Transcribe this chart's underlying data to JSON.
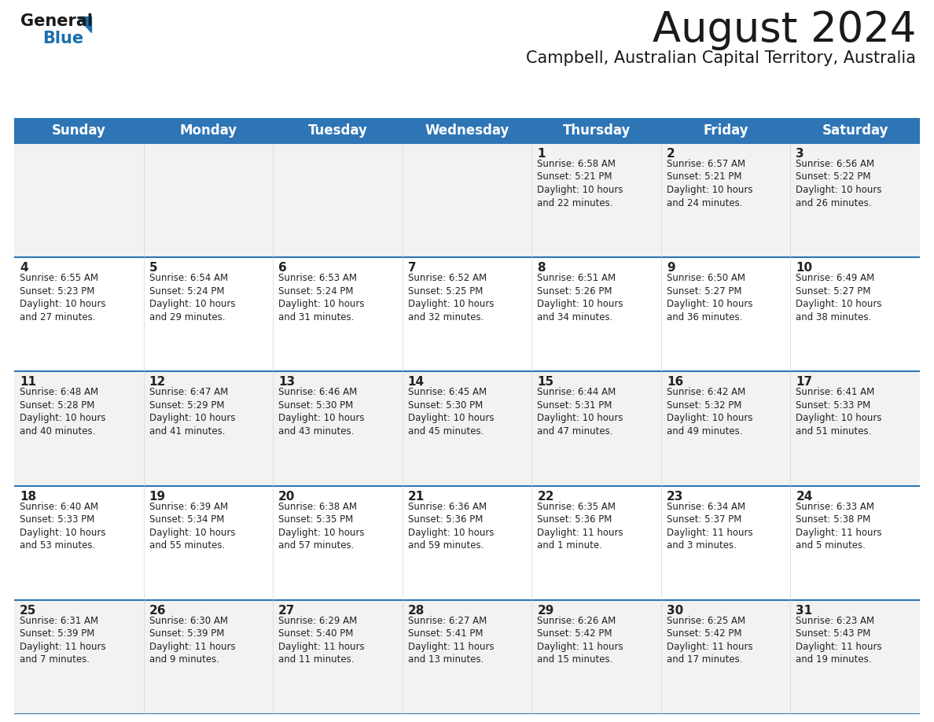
{
  "title": "August 2024",
  "subtitle": "Campbell, Australian Capital Territory, Australia",
  "header_bg": "#2E75B6",
  "header_text_color": "#FFFFFF",
  "row_bg_odd": "#F2F2F2",
  "row_bg_even": "#FFFFFF",
  "border_color": "#2E75B6",
  "day_names": [
    "Sunday",
    "Monday",
    "Tuesday",
    "Wednesday",
    "Thursday",
    "Friday",
    "Saturday"
  ],
  "weeks": [
    [
      {
        "day": "",
        "info": ""
      },
      {
        "day": "",
        "info": ""
      },
      {
        "day": "",
        "info": ""
      },
      {
        "day": "",
        "info": ""
      },
      {
        "day": "1",
        "info": "Sunrise: 6:58 AM\nSunset: 5:21 PM\nDaylight: 10 hours\nand 22 minutes."
      },
      {
        "day": "2",
        "info": "Sunrise: 6:57 AM\nSunset: 5:21 PM\nDaylight: 10 hours\nand 24 minutes."
      },
      {
        "day": "3",
        "info": "Sunrise: 6:56 AM\nSunset: 5:22 PM\nDaylight: 10 hours\nand 26 minutes."
      }
    ],
    [
      {
        "day": "4",
        "info": "Sunrise: 6:55 AM\nSunset: 5:23 PM\nDaylight: 10 hours\nand 27 minutes."
      },
      {
        "day": "5",
        "info": "Sunrise: 6:54 AM\nSunset: 5:24 PM\nDaylight: 10 hours\nand 29 minutes."
      },
      {
        "day": "6",
        "info": "Sunrise: 6:53 AM\nSunset: 5:24 PM\nDaylight: 10 hours\nand 31 minutes."
      },
      {
        "day": "7",
        "info": "Sunrise: 6:52 AM\nSunset: 5:25 PM\nDaylight: 10 hours\nand 32 minutes."
      },
      {
        "day": "8",
        "info": "Sunrise: 6:51 AM\nSunset: 5:26 PM\nDaylight: 10 hours\nand 34 minutes."
      },
      {
        "day": "9",
        "info": "Sunrise: 6:50 AM\nSunset: 5:27 PM\nDaylight: 10 hours\nand 36 minutes."
      },
      {
        "day": "10",
        "info": "Sunrise: 6:49 AM\nSunset: 5:27 PM\nDaylight: 10 hours\nand 38 minutes."
      }
    ],
    [
      {
        "day": "11",
        "info": "Sunrise: 6:48 AM\nSunset: 5:28 PM\nDaylight: 10 hours\nand 40 minutes."
      },
      {
        "day": "12",
        "info": "Sunrise: 6:47 AM\nSunset: 5:29 PM\nDaylight: 10 hours\nand 41 minutes."
      },
      {
        "day": "13",
        "info": "Sunrise: 6:46 AM\nSunset: 5:30 PM\nDaylight: 10 hours\nand 43 minutes."
      },
      {
        "day": "14",
        "info": "Sunrise: 6:45 AM\nSunset: 5:30 PM\nDaylight: 10 hours\nand 45 minutes."
      },
      {
        "day": "15",
        "info": "Sunrise: 6:44 AM\nSunset: 5:31 PM\nDaylight: 10 hours\nand 47 minutes."
      },
      {
        "day": "16",
        "info": "Sunrise: 6:42 AM\nSunset: 5:32 PM\nDaylight: 10 hours\nand 49 minutes."
      },
      {
        "day": "17",
        "info": "Sunrise: 6:41 AM\nSunset: 5:33 PM\nDaylight: 10 hours\nand 51 minutes."
      }
    ],
    [
      {
        "day": "18",
        "info": "Sunrise: 6:40 AM\nSunset: 5:33 PM\nDaylight: 10 hours\nand 53 minutes."
      },
      {
        "day": "19",
        "info": "Sunrise: 6:39 AM\nSunset: 5:34 PM\nDaylight: 10 hours\nand 55 minutes."
      },
      {
        "day": "20",
        "info": "Sunrise: 6:38 AM\nSunset: 5:35 PM\nDaylight: 10 hours\nand 57 minutes."
      },
      {
        "day": "21",
        "info": "Sunrise: 6:36 AM\nSunset: 5:36 PM\nDaylight: 10 hours\nand 59 minutes."
      },
      {
        "day": "22",
        "info": "Sunrise: 6:35 AM\nSunset: 5:36 PM\nDaylight: 11 hours\nand 1 minute."
      },
      {
        "day": "23",
        "info": "Sunrise: 6:34 AM\nSunset: 5:37 PM\nDaylight: 11 hours\nand 3 minutes."
      },
      {
        "day": "24",
        "info": "Sunrise: 6:33 AM\nSunset: 5:38 PM\nDaylight: 11 hours\nand 5 minutes."
      }
    ],
    [
      {
        "day": "25",
        "info": "Sunrise: 6:31 AM\nSunset: 5:39 PM\nDaylight: 11 hours\nand 7 minutes."
      },
      {
        "day": "26",
        "info": "Sunrise: 6:30 AM\nSunset: 5:39 PM\nDaylight: 11 hours\nand 9 minutes."
      },
      {
        "day": "27",
        "info": "Sunrise: 6:29 AM\nSunset: 5:40 PM\nDaylight: 11 hours\nand 11 minutes."
      },
      {
        "day": "28",
        "info": "Sunrise: 6:27 AM\nSunset: 5:41 PM\nDaylight: 11 hours\nand 13 minutes."
      },
      {
        "day": "29",
        "info": "Sunrise: 6:26 AM\nSunset: 5:42 PM\nDaylight: 11 hours\nand 15 minutes."
      },
      {
        "day": "30",
        "info": "Sunrise: 6:25 AM\nSunset: 5:42 PM\nDaylight: 11 hours\nand 17 minutes."
      },
      {
        "day": "31",
        "info": "Sunrise: 6:23 AM\nSunset: 5:43 PM\nDaylight: 11 hours\nand 19 minutes."
      }
    ]
  ],
  "logo_color_general": "#1a1a1a",
  "logo_color_blue": "#1a6faf",
  "title_color": "#1a1a1a",
  "subtitle_color": "#1a1a1a",
  "title_fontsize": 38,
  "subtitle_fontsize": 15,
  "day_name_fontsize": 12,
  "day_num_fontsize": 11,
  "cell_info_fontsize": 8.5
}
